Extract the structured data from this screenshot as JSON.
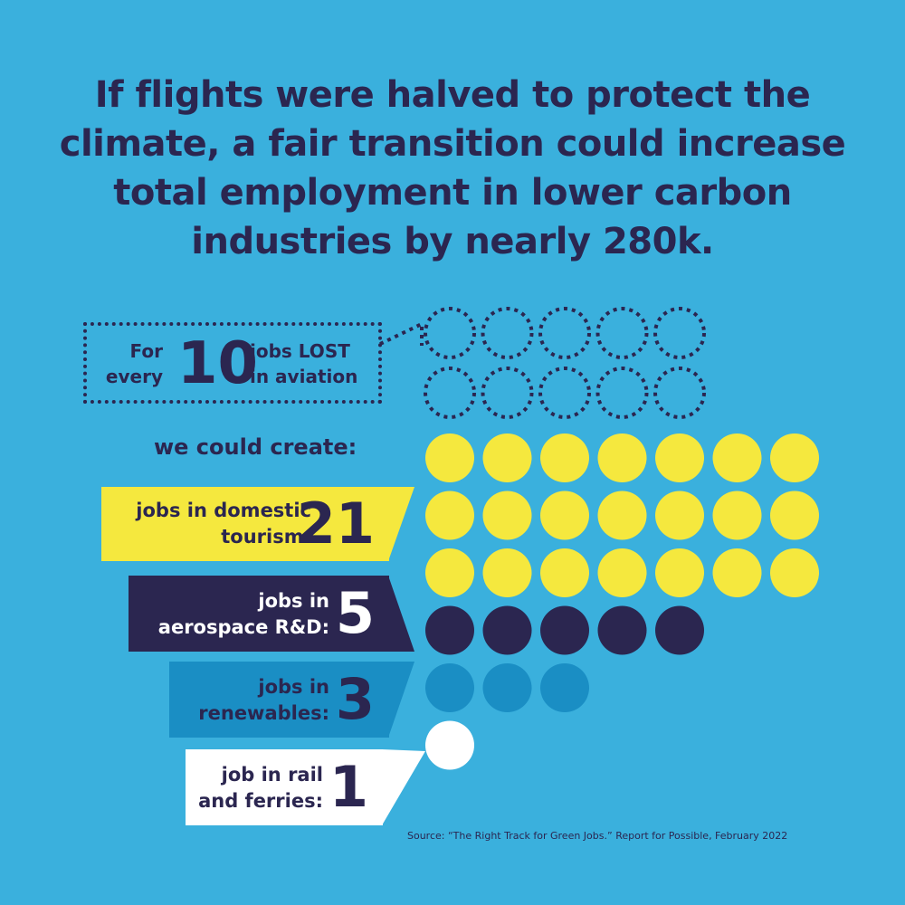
{
  "title": "If flights were halved to protect the climate, a fair transition could increase total employment in lower carbon industries by nearly 280k.",
  "lost": {
    "prefix_1": "For",
    "prefix_2": "every",
    "number": "10",
    "suffix_1": "jobs LOST",
    "suffix_2": "in aviation"
  },
  "create_label": "we could create:",
  "categories": [
    {
      "label_1": "jobs in domestic",
      "label_2": "tourism:",
      "number": "21"
    },
    {
      "label_1": "jobs in",
      "label_2": "aerospace R&D:",
      "number": "5"
    },
    {
      "label_1": "jobs in",
      "label_2": "renewables:",
      "number": "3"
    },
    {
      "label_1": "job in rail",
      "label_2": "and ferries:",
      "number": "1"
    }
  ],
  "source": "Source: “The Right Track for Green Jobs.” Report for Possible, February 2022",
  "chart_data": {
    "type": "pictogram",
    "title": "If flights were halved to protect the climate, a fair transition could increase total employment in lower carbon industries by nearly 280k.",
    "lost": {
      "name": "jobs LOST in aviation",
      "value": 10
    },
    "series": [
      {
        "name": "jobs in domestic tourism",
        "value": 21,
        "color": "#f5e83e"
      },
      {
        "name": "jobs in aerospace R&D",
        "value": 5,
        "color": "#2b2650"
      },
      {
        "name": "jobs in renewables",
        "value": 3,
        "color": "#1a8ec4"
      },
      {
        "name": "job in rail and ferries",
        "value": 1,
        "color": "#ffffff"
      }
    ]
  },
  "colors": {
    "background": "#3ab0dd",
    "text": "#2b2650",
    "tourism": "#f5e83e",
    "aerospace": "#2b2650",
    "renewables": "#1a8ec4",
    "rail": "#ffffff"
  }
}
